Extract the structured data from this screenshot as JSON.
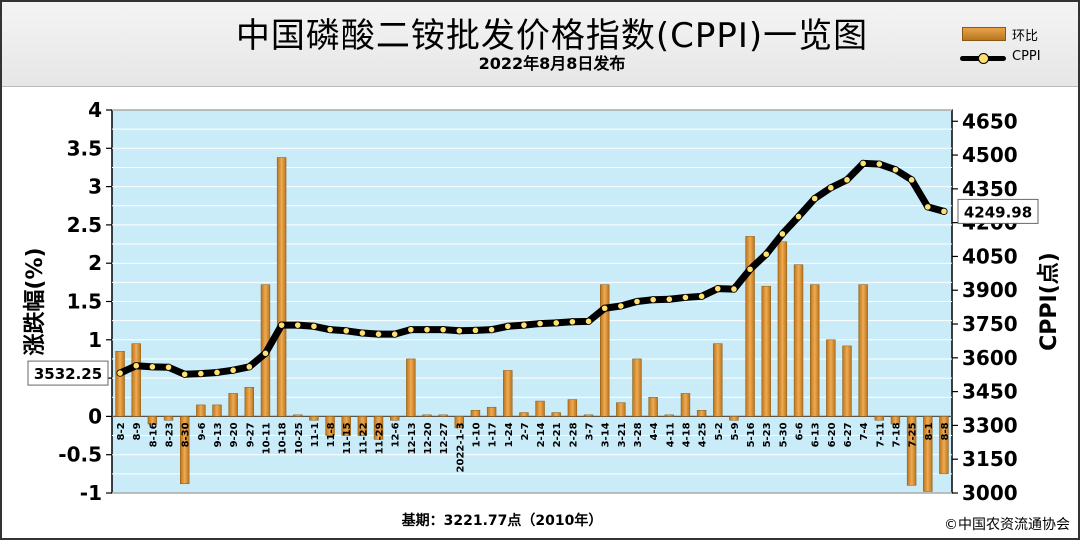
{
  "header": {
    "title": "中国磷酸二铵批发价格指数(CPPI)一览图",
    "subtitle": "2022年8月8日发布"
  },
  "legend": {
    "bar_label": "环比",
    "line_label": "CPPI"
  },
  "footer": {
    "base_note": "基期：3221.77点（2010年）",
    "copyright": "©中国农资流通协会"
  },
  "colors": {
    "plot_bg": "#c9ecf8",
    "bar": "#d98c2f",
    "line": "#000000",
    "marker": "#ffe070"
  },
  "chart_data": {
    "type": "bar",
    "title": "中国磷酸二铵批发价格指数(CPPI)一览图",
    "ylabel_left": "涨跌幅(%)",
    "ylabel_right": "CPPI(点)",
    "ylim_left": [
      -1,
      4
    ],
    "ylim_right": [
      3000,
      4700
    ],
    "yticks_left": [
      "4",
      "3.5",
      "3",
      "2.5",
      "2",
      "1.5",
      "1",
      "0.5",
      "0",
      "-0.5",
      "-1"
    ],
    "yticks_right": [
      "4650",
      "4500",
      "4350",
      "4200",
      "4050",
      "3900",
      "3750",
      "3600",
      "3450",
      "3300",
      "3150",
      "3000"
    ],
    "grid": true,
    "legend_position": "top-right",
    "categories": [
      "8-2",
      "8-9",
      "8-16",
      "8-23",
      "8-30",
      "9-6",
      "9-13",
      "9-20",
      "9-27",
      "10-11",
      "10-18",
      "10-25",
      "11-1",
      "11-8",
      "11-15",
      "11-22",
      "11-29",
      "12-6",
      "12-13",
      "12-20",
      "12-27",
      "2022-1-3",
      "1-10",
      "1-17",
      "1-24",
      "2-7",
      "2-14",
      "2-21",
      "2-28",
      "3-7",
      "3-14",
      "3-21",
      "3-28",
      "4-4",
      "4-11",
      "4-18",
      "4-25",
      "5-2",
      "5-9",
      "5-16",
      "5-23",
      "5-30",
      "6-6",
      "6-13",
      "6-20",
      "6-27",
      "7-4",
      "7-11",
      "7-18",
      "7-25",
      "8-1",
      "8-8"
    ],
    "series": [
      {
        "name": "环比",
        "type": "bar",
        "values": [
          0.85,
          0.95,
          -0.1,
          -0.05,
          -0.88,
          0.15,
          0.15,
          0.3,
          0.38,
          1.72,
          3.38,
          0.02,
          -0.05,
          -0.25,
          -0.25,
          -0.25,
          -0.3,
          -0.05,
          0.75,
          0.02,
          0.02,
          -0.15,
          0.08,
          0.12,
          0.6,
          0.05,
          0.2,
          0.05,
          0.22,
          0.02,
          1.72,
          0.18,
          0.75,
          0.25,
          0.02,
          0.3,
          0.08,
          0.95,
          -0.05,
          2.35,
          1.7,
          2.28,
          1.98,
          1.72,
          1.0,
          0.92,
          1.72,
          -0.05,
          -0.1,
          -0.9,
          -0.98,
          -0.75
        ]
      },
      {
        "name": "CPPI",
        "type": "line",
        "values": [
          3532.25,
          3565,
          3560,
          3558,
          3527,
          3530,
          3535,
          3545,
          3560,
          3620,
          3745,
          3745,
          3740,
          3725,
          3720,
          3710,
          3705,
          3705,
          3725,
          3725,
          3725,
          3720,
          3722,
          3725,
          3740,
          3745,
          3752,
          3755,
          3760,
          3762,
          3820,
          3830,
          3850,
          3858,
          3860,
          3868,
          3873,
          3907,
          3905,
          3993,
          4060,
          4150,
          4227,
          4307,
          4355,
          4390,
          4463,
          4460,
          4435,
          4390,
          4270,
          4249.98
        ]
      }
    ],
    "annotations": {
      "left_value": "3532.25",
      "right_value": "4249.98"
    }
  }
}
